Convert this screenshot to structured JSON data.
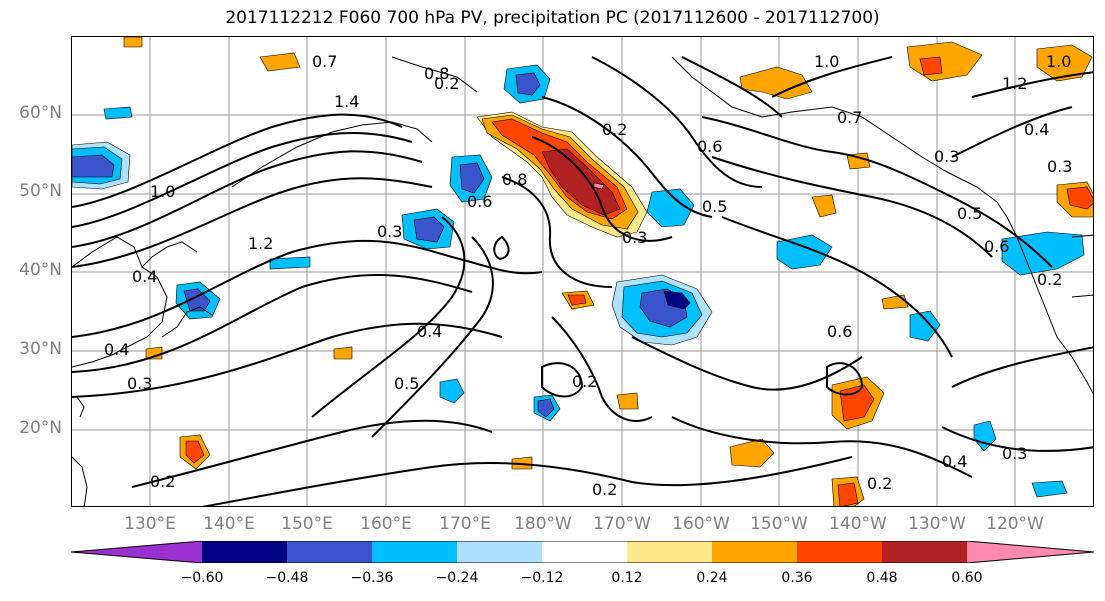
{
  "title": "2017112212 F060 700 hPa PV, precipitation PC (2017112600 - 2017112700)",
  "lat_labels": [
    "60°N",
    "50°N",
    "40°N",
    "30°N",
    "20°N"
  ],
  "lon_labels": [
    "130°E",
    "140°E",
    "150°E",
    "160°E",
    "170°E",
    "180°W",
    "170°W",
    "160°W",
    "150°W",
    "140°W",
    "130°W",
    "120°W"
  ],
  "colorbar": {
    "colors": [
      "#9b30d0",
      "#000080",
      "#3a55cc",
      "#00bfff",
      "#aee2ff",
      "#ffffff",
      "#ffe98a",
      "#ffa500",
      "#ff4500",
      "#b22222",
      "#ff88b0"
    ],
    "ticks": [
      "−0.60",
      "−0.48",
      "−0.36",
      "−0.24",
      "−0.12",
      "0.12",
      "0.24",
      "0.36",
      "0.48",
      "0.60"
    ]
  },
  "contour_labels": [
    {
      "text": "0.8"
    },
    {
      "text": "1.0"
    },
    {
      "text": "1.2"
    },
    {
      "text": "1.4"
    },
    {
      "text": "1.0"
    },
    {
      "text": "0.2"
    },
    {
      "text": "0.3"
    },
    {
      "text": "0.4"
    },
    {
      "text": "0.3"
    },
    {
      "text": "0.2"
    },
    {
      "text": "0.5"
    },
    {
      "text": "0.4"
    },
    {
      "text": "0.2"
    },
    {
      "text": "0.2"
    },
    {
      "text": "0.6"
    },
    {
      "text": "0.8"
    },
    {
      "text": "0.7"
    },
    {
      "text": "0.3"
    },
    {
      "text": "0.5"
    },
    {
      "text": "0.5"
    },
    {
      "text": "0.6"
    },
    {
      "text": "0.2"
    },
    {
      "text": "0.4"
    },
    {
      "text": "0.3"
    },
    {
      "text": "0.3"
    },
    {
      "text": "0.6"
    },
    {
      "text": "1.2"
    },
    {
      "text": "1.0"
    },
    {
      "text": "0.4"
    },
    {
      "text": "0.3"
    },
    {
      "text": "0.6"
    },
    {
      "text": "0.4"
    },
    {
      "text": "0.2"
    },
    {
      "text": "0.2"
    },
    {
      "text": "0.7"
    }
  ]
}
